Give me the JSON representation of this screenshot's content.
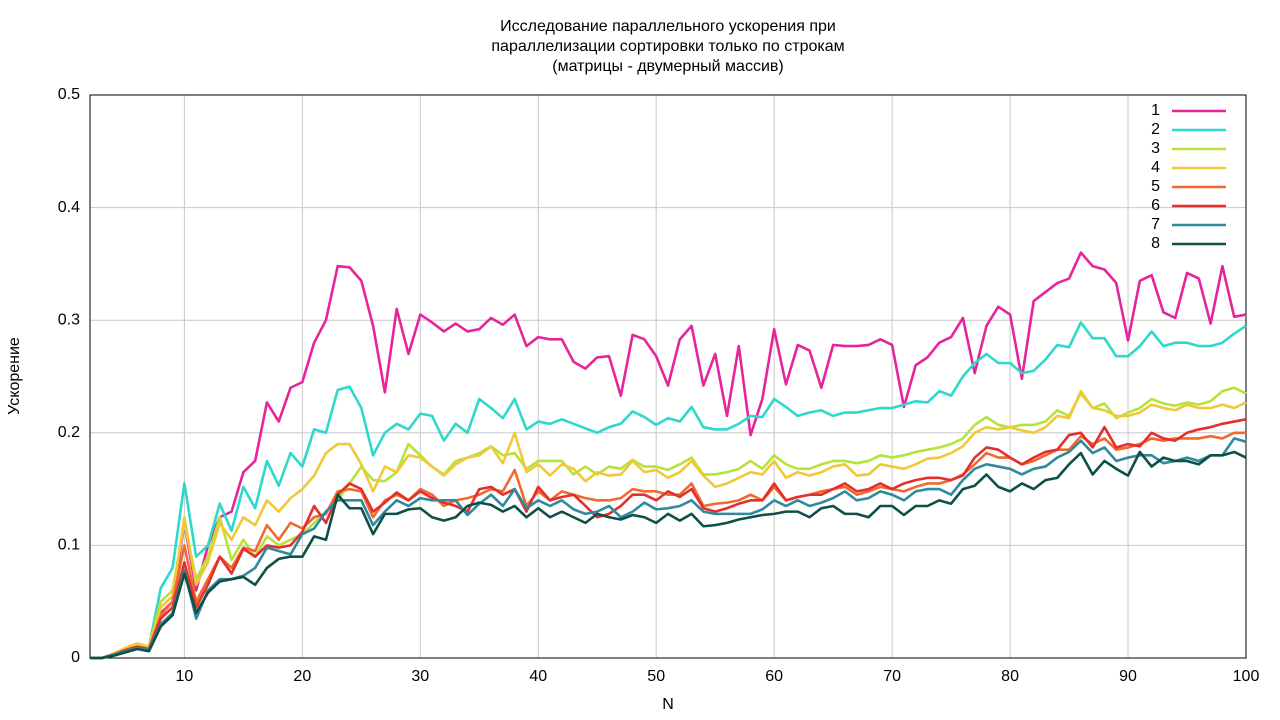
{
  "chart_data": {
    "type": "line",
    "title": [
      "Исследование параллельного ускорения при",
      "параллелизации сортировки только по строкам",
      "(матрицы - двумерный массив)"
    ],
    "xlabel": "N",
    "ylabel": "Ускорение",
    "xlim": [
      2,
      100
    ],
    "ylim": [
      0,
      0.5
    ],
    "xticks": [
      10,
      20,
      30,
      40,
      50,
      60,
      70,
      80,
      90,
      100
    ],
    "yticks": [
      0,
      0.1,
      0.2,
      0.3,
      0.4,
      0.5
    ],
    "grid": true,
    "legend": "top-right",
    "x": [
      2,
      3,
      4,
      5,
      6,
      7,
      8,
      9,
      10,
      11,
      12,
      13,
      14,
      15,
      16,
      17,
      18,
      19,
      20,
      21,
      22,
      23,
      24,
      25,
      26,
      27,
      28,
      29,
      30,
      31,
      32,
      33,
      34,
      35,
      36,
      37,
      38,
      39,
      40,
      41,
      42,
      43,
      44,
      45,
      46,
      47,
      48,
      49,
      50,
      51,
      52,
      53,
      54,
      55,
      56,
      57,
      58,
      59,
      60,
      61,
      62,
      63,
      64,
      65,
      66,
      67,
      68,
      69,
      70,
      71,
      72,
      73,
      74,
      75,
      76,
      77,
      78,
      79,
      80,
      81,
      82,
      83,
      84,
      85,
      86,
      87,
      88,
      89,
      90,
      91,
      92,
      93,
      94,
      95,
      96,
      97,
      98,
      99,
      100
    ],
    "series": [
      {
        "name": "1",
        "color": "#e6249b",
        "values": [
          0,
          0,
          0.003,
          0.007,
          0.01,
          0.008,
          0.04,
          0.05,
          0.12,
          0.06,
          0.1,
          0.125,
          0.13,
          0.165,
          0.175,
          0.227,
          0.21,
          0.24,
          0.245,
          0.28,
          0.3,
          0.348,
          0.347,
          0.335,
          0.295,
          0.236,
          0.31,
          0.27,
          0.305,
          0.298,
          0.29,
          0.297,
          0.29,
          0.292,
          0.302,
          0.296,
          0.305,
          0.277,
          0.285,
          0.283,
          0.283,
          0.263,
          0.257,
          0.267,
          0.268,
          0.233,
          0.287,
          0.283,
          0.268,
          0.242,
          0.283,
          0.295,
          0.242,
          0.27,
          0.215,
          0.277,
          0.198,
          0.23,
          0.292,
          0.243,
          0.278,
          0.273,
          0.24,
          0.278,
          0.277,
          0.277,
          0.278,
          0.283,
          0.278,
          0.223,
          0.26,
          0.267,
          0.28,
          0.285,
          0.302,
          0.253,
          0.295,
          0.312,
          0.305,
          0.248,
          0.317,
          0.325,
          0.333,
          0.337,
          0.36,
          0.348,
          0.345,
          0.333,
          0.282,
          0.335,
          0.34,
          0.307,
          0.302,
          0.342,
          0.337,
          0.297,
          0.348,
          0.303,
          0.305
        ]
      },
      {
        "name": "2",
        "color": "#2ed8cb",
        "values": [
          0,
          0,
          0.003,
          0.007,
          0.01,
          0.01,
          0.062,
          0.08,
          0.155,
          0.09,
          0.1,
          0.137,
          0.113,
          0.152,
          0.133,
          0.175,
          0.153,
          0.182,
          0.17,
          0.203,
          0.2,
          0.238,
          0.241,
          0.222,
          0.18,
          0.2,
          0.208,
          0.203,
          0.217,
          0.215,
          0.193,
          0.208,
          0.2,
          0.23,
          0.222,
          0.213,
          0.23,
          0.203,
          0.21,
          0.208,
          0.212,
          0.208,
          0.204,
          0.2,
          0.205,
          0.208,
          0.219,
          0.214,
          0.207,
          0.213,
          0.21,
          0.223,
          0.205,
          0.203,
          0.203,
          0.208,
          0.215,
          0.214,
          0.23,
          0.223,
          0.215,
          0.218,
          0.22,
          0.215,
          0.218,
          0.218,
          0.22,
          0.222,
          0.222,
          0.225,
          0.228,
          0.227,
          0.237,
          0.233,
          0.25,
          0.262,
          0.27,
          0.262,
          0.262,
          0.253,
          0.255,
          0.265,
          0.278,
          0.276,
          0.298,
          0.284,
          0.284,
          0.268,
          0.268,
          0.277,
          0.29,
          0.277,
          0.28,
          0.28,
          0.277,
          0.277,
          0.28,
          0.288,
          0.295
        ]
      },
      {
        "name": "3",
        "color": "#b4e43c",
        "values": [
          0,
          0,
          0.003,
          0.008,
          0.012,
          0.01,
          0.05,
          0.06,
          0.12,
          0.07,
          0.09,
          0.125,
          0.087,
          0.105,
          0.09,
          0.108,
          0.1,
          0.105,
          0.11,
          0.12,
          0.13,
          0.14,
          0.155,
          0.17,
          0.158,
          0.157,
          0.165,
          0.19,
          0.18,
          0.17,
          0.163,
          0.175,
          0.178,
          0.182,
          0.188,
          0.18,
          0.182,
          0.168,
          0.175,
          0.175,
          0.175,
          0.163,
          0.17,
          0.163,
          0.17,
          0.168,
          0.176,
          0.17,
          0.17,
          0.167,
          0.172,
          0.178,
          0.163,
          0.163,
          0.165,
          0.168,
          0.175,
          0.168,
          0.18,
          0.172,
          0.168,
          0.168,
          0.172,
          0.175,
          0.175,
          0.173,
          0.175,
          0.18,
          0.178,
          0.18,
          0.183,
          0.185,
          0.187,
          0.19,
          0.195,
          0.207,
          0.214,
          0.207,
          0.205,
          0.207,
          0.207,
          0.21,
          0.22,
          0.215,
          0.235,
          0.222,
          0.226,
          0.213,
          0.218,
          0.222,
          0.23,
          0.226,
          0.224,
          0.227,
          0.225,
          0.228,
          0.237,
          0.24,
          0.235
        ]
      },
      {
        "name": "4",
        "color": "#f0c83a",
        "values": [
          0,
          0,
          0.004,
          0.009,
          0.013,
          0.01,
          0.045,
          0.055,
          0.125,
          0.065,
          0.085,
          0.12,
          0.105,
          0.125,
          0.118,
          0.14,
          0.13,
          0.142,
          0.15,
          0.162,
          0.182,
          0.19,
          0.19,
          0.172,
          0.148,
          0.17,
          0.165,
          0.18,
          0.178,
          0.17,
          0.162,
          0.172,
          0.178,
          0.18,
          0.188,
          0.173,
          0.2,
          0.165,
          0.172,
          0.162,
          0.172,
          0.168,
          0.157,
          0.165,
          0.162,
          0.163,
          0.175,
          0.165,
          0.167,
          0.16,
          0.165,
          0.175,
          0.162,
          0.152,
          0.155,
          0.16,
          0.165,
          0.163,
          0.175,
          0.16,
          0.165,
          0.162,
          0.165,
          0.17,
          0.172,
          0.162,
          0.163,
          0.172,
          0.17,
          0.168,
          0.172,
          0.177,
          0.178,
          0.182,
          0.188,
          0.2,
          0.205,
          0.203,
          0.205,
          0.202,
          0.2,
          0.205,
          0.215,
          0.213,
          0.237,
          0.222,
          0.22,
          0.215,
          0.215,
          0.218,
          0.225,
          0.222,
          0.22,
          0.225,
          0.222,
          0.222,
          0.225,
          0.222,
          0.227
        ]
      },
      {
        "name": "5",
        "color": "#f0692e",
        "values": [
          0,
          0,
          0.003,
          0.007,
          0.01,
          0.008,
          0.038,
          0.05,
          0.1,
          0.05,
          0.07,
          0.09,
          0.08,
          0.098,
          0.095,
          0.118,
          0.105,
          0.12,
          0.115,
          0.125,
          0.128,
          0.148,
          0.15,
          0.148,
          0.125,
          0.14,
          0.145,
          0.14,
          0.15,
          0.145,
          0.135,
          0.14,
          0.142,
          0.145,
          0.15,
          0.148,
          0.167,
          0.135,
          0.148,
          0.14,
          0.148,
          0.145,
          0.142,
          0.14,
          0.14,
          0.142,
          0.15,
          0.148,
          0.148,
          0.145,
          0.145,
          0.155,
          0.135,
          0.137,
          0.138,
          0.14,
          0.145,
          0.14,
          0.152,
          0.14,
          0.143,
          0.145,
          0.148,
          0.15,
          0.152,
          0.145,
          0.148,
          0.152,
          0.15,
          0.148,
          0.152,
          0.155,
          0.155,
          0.158,
          0.163,
          0.172,
          0.182,
          0.178,
          0.178,
          0.172,
          0.175,
          0.18,
          0.185,
          0.185,
          0.197,
          0.19,
          0.195,
          0.185,
          0.187,
          0.19,
          0.195,
          0.193,
          0.195,
          0.195,
          0.195,
          0.197,
          0.195,
          0.2,
          0.2
        ]
      },
      {
        "name": "6",
        "color": "#e3302e",
        "values": [
          0,
          0,
          0.003,
          0.007,
          0.01,
          0.008,
          0.035,
          0.045,
          0.085,
          0.045,
          0.065,
          0.09,
          0.075,
          0.097,
          0.09,
          0.1,
          0.098,
          0.1,
          0.112,
          0.135,
          0.12,
          0.145,
          0.155,
          0.15,
          0.13,
          0.138,
          0.147,
          0.14,
          0.148,
          0.142,
          0.138,
          0.135,
          0.13,
          0.15,
          0.152,
          0.145,
          0.15,
          0.13,
          0.152,
          0.14,
          0.143,
          0.145,
          0.135,
          0.125,
          0.128,
          0.135,
          0.145,
          0.145,
          0.14,
          0.148,
          0.143,
          0.15,
          0.133,
          0.13,
          0.133,
          0.137,
          0.14,
          0.14,
          0.155,
          0.14,
          0.143,
          0.145,
          0.145,
          0.15,
          0.155,
          0.148,
          0.15,
          0.155,
          0.15,
          0.155,
          0.158,
          0.16,
          0.16,
          0.158,
          0.162,
          0.178,
          0.187,
          0.185,
          0.178,
          0.172,
          0.178,
          0.183,
          0.185,
          0.198,
          0.2,
          0.187,
          0.205,
          0.187,
          0.19,
          0.188,
          0.2,
          0.195,
          0.193,
          0.2,
          0.203,
          0.205,
          0.208,
          0.21,
          0.212
        ]
      },
      {
        "name": "7",
        "color": "#2e8a9c",
        "values": [
          0,
          0,
          0.003,
          0.006,
          0.009,
          0.007,
          0.03,
          0.04,
          0.078,
          0.035,
          0.06,
          0.07,
          0.07,
          0.073,
          0.08,
          0.098,
          0.095,
          0.092,
          0.11,
          0.115,
          0.13,
          0.14,
          0.14,
          0.14,
          0.118,
          0.13,
          0.14,
          0.135,
          0.142,
          0.14,
          0.14,
          0.14,
          0.127,
          0.137,
          0.145,
          0.135,
          0.15,
          0.133,
          0.14,
          0.135,
          0.14,
          0.132,
          0.128,
          0.13,
          0.135,
          0.125,
          0.13,
          0.138,
          0.132,
          0.133,
          0.135,
          0.14,
          0.13,
          0.128,
          0.128,
          0.128,
          0.128,
          0.132,
          0.14,
          0.135,
          0.14,
          0.135,
          0.138,
          0.142,
          0.148,
          0.14,
          0.142,
          0.148,
          0.145,
          0.14,
          0.148,
          0.15,
          0.15,
          0.145,
          0.158,
          0.168,
          0.172,
          0.17,
          0.168,
          0.163,
          0.168,
          0.17,
          0.178,
          0.183,
          0.193,
          0.182,
          0.187,
          0.175,
          0.178,
          0.18,
          0.18,
          0.173,
          0.175,
          0.178,
          0.175,
          0.18,
          0.18,
          0.195,
          0.192
        ]
      },
      {
        "name": "8",
        "color": "#0d5047",
        "values": [
          0,
          0,
          0.002,
          0.005,
          0.008,
          0.006,
          0.028,
          0.038,
          0.075,
          0.04,
          0.058,
          0.068,
          0.07,
          0.072,
          0.065,
          0.08,
          0.088,
          0.09,
          0.09,
          0.108,
          0.105,
          0.145,
          0.133,
          0.133,
          0.11,
          0.128,
          0.128,
          0.132,
          0.133,
          0.125,
          0.122,
          0.125,
          0.135,
          0.138,
          0.136,
          0.13,
          0.135,
          0.125,
          0.133,
          0.125,
          0.13,
          0.125,
          0.12,
          0.128,
          0.125,
          0.123,
          0.127,
          0.125,
          0.12,
          0.128,
          0.122,
          0.128,
          0.117,
          0.118,
          0.12,
          0.123,
          0.125,
          0.127,
          0.128,
          0.13,
          0.13,
          0.125,
          0.133,
          0.135,
          0.128,
          0.128,
          0.125,
          0.135,
          0.135,
          0.127,
          0.135,
          0.135,
          0.14,
          0.137,
          0.15,
          0.153,
          0.163,
          0.152,
          0.148,
          0.155,
          0.15,
          0.158,
          0.16,
          0.172,
          0.182,
          0.163,
          0.175,
          0.168,
          0.162,
          0.183,
          0.17,
          0.178,
          0.175,
          0.175,
          0.172,
          0.18,
          0.18,
          0.183,
          0.178
        ]
      }
    ]
  }
}
